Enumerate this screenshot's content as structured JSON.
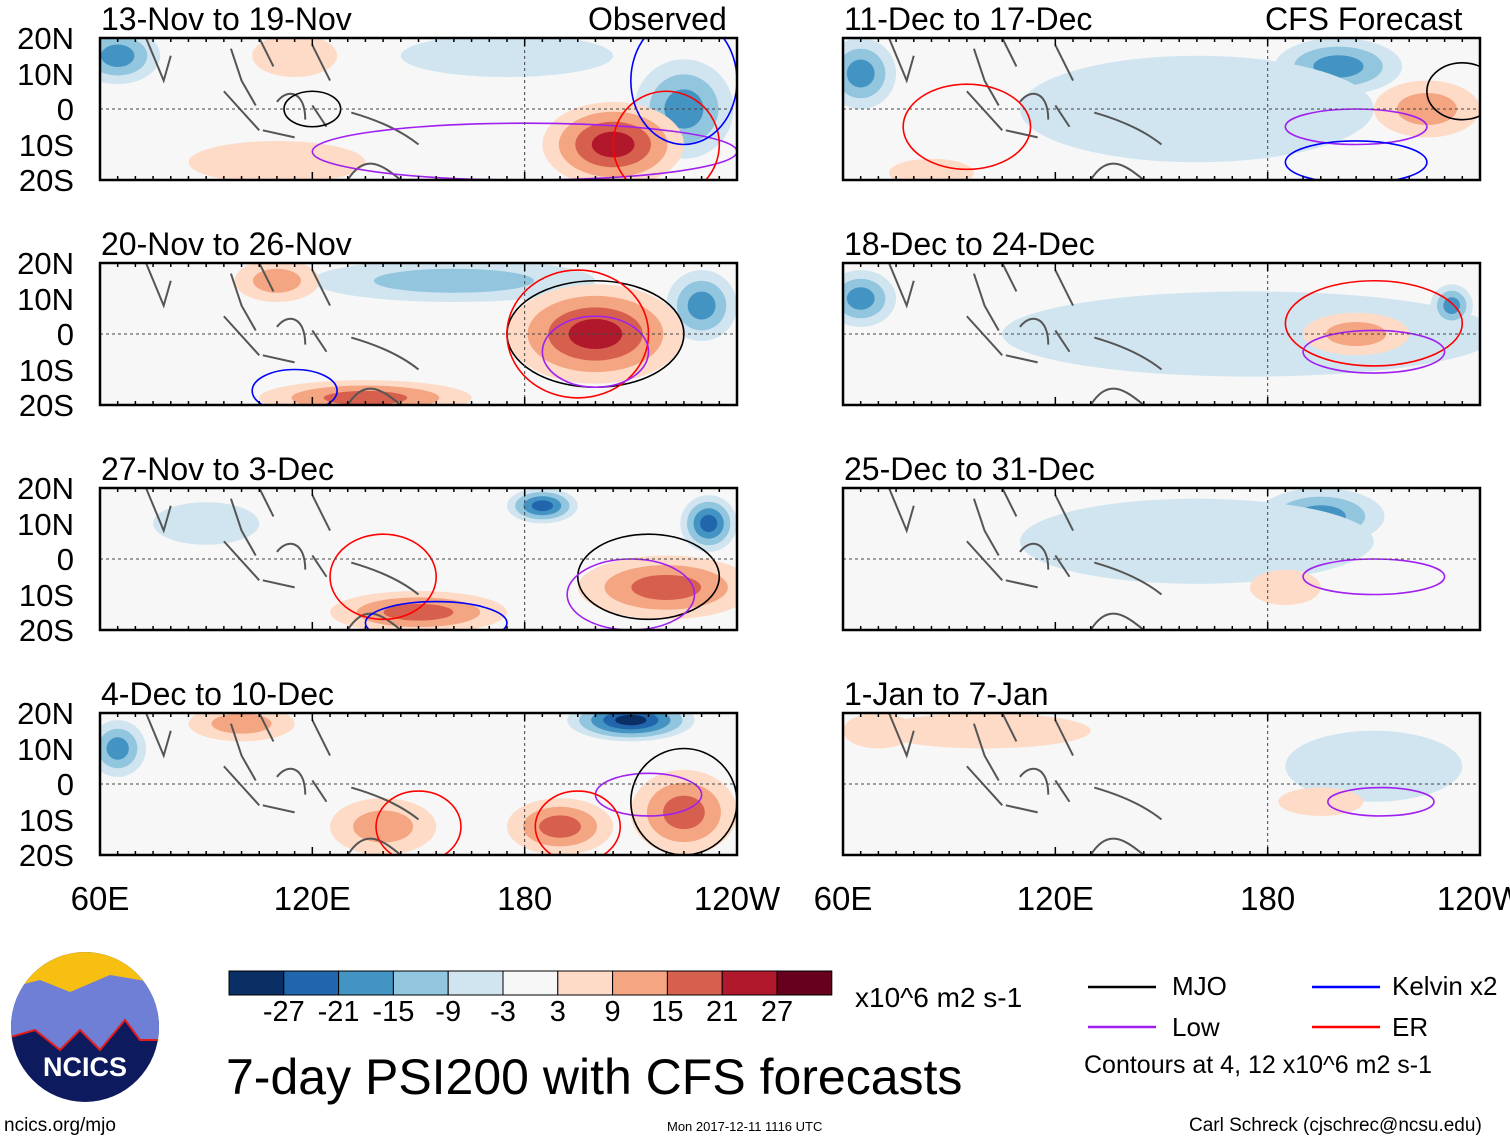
{
  "chart_data": {
    "type": "heatmap",
    "title": "7-day PSI200 with CFS forecasts",
    "units": "x10^6 m2 s-1",
    "left_column_label": "Observed",
    "right_column_label": "CFS Forecast",
    "x_ticks": [
      "60E",
      "120E",
      "180",
      "120W"
    ],
    "y_ticks": [
      "20N",
      "10N",
      "0",
      "10S",
      "20S"
    ],
    "xlim_lon": [
      60,
      240
    ],
    "ylim_lat": [
      -20,
      20
    ],
    "panels": [
      {
        "title": "13-Nov to 19-Nov",
        "kind": "observed"
      },
      {
        "title": "20-Nov to 26-Nov",
        "kind": "observed"
      },
      {
        "title": "27-Nov to 3-Dec",
        "kind": "observed"
      },
      {
        "title": "4-Dec to 10-Dec",
        "kind": "observed"
      },
      {
        "title": "11-Dec to 17-Dec",
        "kind": "forecast"
      },
      {
        "title": "18-Dec to 24-Dec",
        "kind": "forecast"
      },
      {
        "title": "25-Dec to 31-Dec",
        "kind": "forecast"
      },
      {
        "title": "1-Jan to 7-Jan",
        "kind": "forecast"
      }
    ],
    "colorbar": {
      "labels": [
        "-27",
        "-21",
        "-15",
        "-9",
        "-3",
        "3",
        "9",
        "15",
        "21",
        "27"
      ],
      "colors": [
        "#0a2f64",
        "#2166ac",
        "#4393c3",
        "#92c5de",
        "#d1e5f0",
        "#f7f7f7",
        "#fddbc7",
        "#f4a582",
        "#d6604d",
        "#b2182b",
        "#67001f"
      ]
    },
    "legend": [
      {
        "label": "MJO",
        "color": "#000000"
      },
      {
        "label": "Kelvin x2",
        "color": "#0000ff"
      },
      {
        "label": "Low",
        "color": "#a020f0"
      },
      {
        "label": "ER",
        "color": "#ff0000"
      }
    ],
    "contour_note": "Contours at 4, 12 x10^6 m2 s-1"
  },
  "footer": {
    "logo_text": "NCICS",
    "url": "ncics.org/mjo",
    "timestamp": "Mon 2017-12-11 1116 UTC",
    "credit": "Carl Schreck (cjschrec@ncsu.edu)"
  }
}
